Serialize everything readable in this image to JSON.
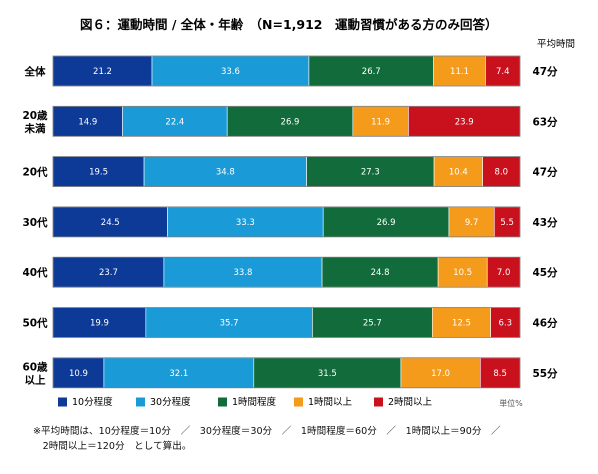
{
  "chart_data": {
    "type": "bar",
    "orientation": "horizontal",
    "stacked": true,
    "percent": true,
    "title": "図６：運動時間 / 全体・年齢　（N=1,912　運動習慣がある方のみ回答）",
    "categories": [
      [
        "全体"
      ],
      [
        "20歳",
        "未満"
      ],
      [
        "20代"
      ],
      [
        "30代"
      ],
      [
        "40代"
      ],
      [
        "50代"
      ],
      [
        "60歳",
        "以上"
      ]
    ],
    "series": [
      {
        "name": "10分程度",
        "color": "#0d3a97",
        "values": [
          21.2,
          14.9,
          19.5,
          24.5,
          23.7,
          19.9,
          10.9
        ]
      },
      {
        "name": "30分程度",
        "color": "#1a9bd7",
        "values": [
          33.6,
          22.4,
          34.8,
          33.3,
          33.8,
          35.7,
          32.1
        ]
      },
      {
        "name": "1時間程度",
        "color": "#116b3a",
        "values": [
          26.7,
          26.9,
          27.3,
          26.9,
          24.8,
          25.7,
          31.5
        ]
      },
      {
        "name": "1時間以上",
        "color": "#f59b1c",
        "values": [
          11.1,
          11.9,
          10.4,
          9.7,
          10.5,
          12.5,
          17.0
        ]
      },
      {
        "name": "2時間以上",
        "color": "#c9101d",
        "values": [
          7.4,
          23.9,
          8.0,
          5.5,
          7.0,
          6.3,
          8.5
        ]
      }
    ],
    "avg_header": "平均時間",
    "avg_values": [
      "47分",
      "63分",
      "47分",
      "43分",
      "45分",
      "46分",
      "55分"
    ],
    "unit_label": "単位%",
    "xlim": [
      0,
      100
    ],
    "grid": false,
    "legend_position": "bottom"
  },
  "note_lines": [
    "※平均時間は、10分程度＝10分　／　30分程度＝30分　／　1時間程度＝60分　／　1時間以上＝90分　／",
    "　2時間以上＝120分　として算出。"
  ]
}
